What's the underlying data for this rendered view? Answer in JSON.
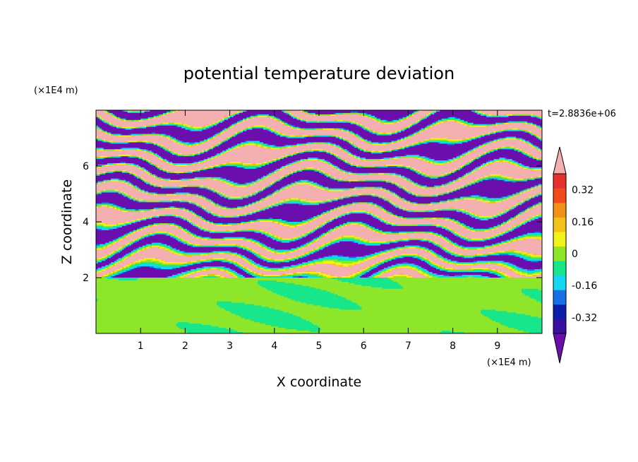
{
  "chart_data": {
    "type": "heatmap",
    "title": "potential temperature deviation",
    "xlabel": "X coordinate",
    "ylabel": "Z coordinate",
    "x_unit": "(×1E4 m)",
    "y_unit": "(×1E4 m)",
    "time_label": "t=2.8836e+06",
    "xlim": [
      0,
      10
    ],
    "ylim": [
      0,
      8
    ],
    "x_ticks": [
      1,
      2,
      3,
      4,
      5,
      6,
      7,
      8,
      9
    ],
    "y_ticks": [
      2,
      4,
      6
    ],
    "colorbar": {
      "levels": [
        -0.48,
        -0.4,
        -0.32,
        -0.24,
        -0.16,
        -0.08,
        0,
        0.08,
        0.16,
        0.24,
        0.32,
        0.4,
        0.48
      ],
      "colors": [
        "#6a0fae",
        "#3a10a0",
        "#0b1fa8",
        "#1870e6",
        "#14d8f2",
        "#18e68a",
        "#8ee62a",
        "#f2f21a",
        "#f2c21a",
        "#f2901a",
        "#f24a1a",
        "#e83030",
        "#f4b0b0"
      ],
      "tick_labels": [
        "0.32",
        "0.16",
        "0",
        "-0.16",
        "-0.32"
      ],
      "tick_values": [
        0.32,
        0.16,
        0,
        -0.16,
        -0.32
      ]
    }
  }
}
